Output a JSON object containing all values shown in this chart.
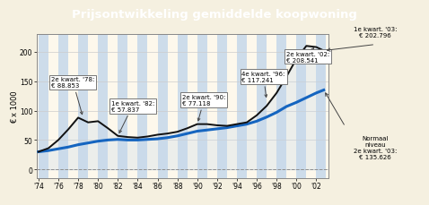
{
  "title": "Prijsontwikkeling gemiddelde koopwoning",
  "title_bg": "#1a3570",
  "title_color": "#ffffff",
  "ylabel": "€ x 1000",
  "ylim": [
    -15,
    230
  ],
  "yticks": [
    0,
    50,
    100,
    150,
    200
  ],
  "bg_color": "#fdf8ec",
  "fig_bg": "#f5f0e0",
  "years_x": [
    1974,
    1975,
    1976,
    1977,
    1978,
    1979,
    1980,
    1981,
    1982,
    1983,
    1984,
    1985,
    1986,
    1987,
    1988,
    1989,
    1990,
    1991,
    1992,
    1993,
    1994,
    1995,
    1996,
    1997,
    1998,
    1999,
    2000,
    2001,
    2002,
    2002.75
  ],
  "house_prices": [
    30,
    36,
    50,
    68,
    88,
    80,
    82,
    70,
    57,
    55,
    54,
    56,
    59,
    61,
    64,
    70,
    77,
    77,
    75,
    74,
    77,
    80,
    92,
    108,
    130,
    158,
    188,
    210,
    208,
    202
  ],
  "normal_prices": [
    30,
    32,
    35,
    38,
    42,
    45,
    48,
    50,
    51,
    50,
    50,
    51,
    52,
    54,
    57,
    61,
    65,
    67,
    69,
    71,
    74,
    77,
    82,
    89,
    97,
    107,
    114,
    122,
    130,
    135
  ],
  "bar_color": "#c5d8ea",
  "line_color": "#111111",
  "normal_line_color": "#1565c0",
  "xtick_years": [
    1974,
    1976,
    1978,
    1980,
    1982,
    1984,
    1986,
    1988,
    1990,
    1992,
    1994,
    1996,
    1998,
    2000,
    2002
  ],
  "xtick_labels": [
    "'74",
    "'76",
    "'78",
    "'80",
    "'82",
    "'84",
    "'86",
    "'88",
    "'90",
    "'92",
    "'94",
    "'96",
    "'98",
    "'00",
    "'02"
  ]
}
